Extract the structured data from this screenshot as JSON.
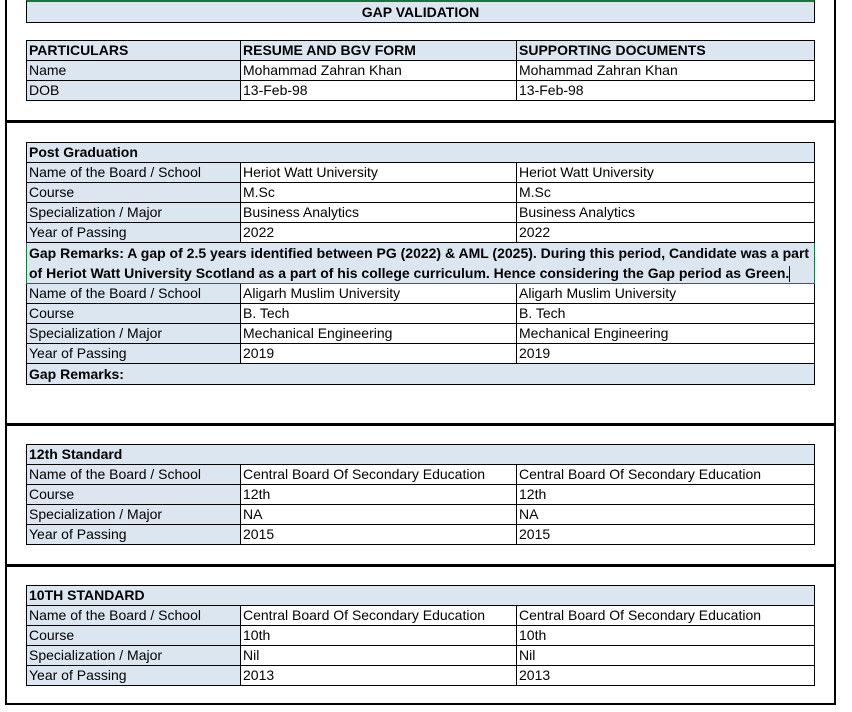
{
  "title": "GAP VALIDATION",
  "personal": {
    "headers": [
      "PARTICULARS",
      "RESUME AND BGV FORM",
      "SUPPORTING DOCUMENTS"
    ],
    "rows": [
      [
        "Name",
        "Mohammad Zahran Khan",
        "Mohammad Zahran Khan"
      ],
      [
        "DOB",
        "13-Feb-98",
        "13-Feb-98"
      ]
    ]
  },
  "post_graduation": {
    "heading": "Post Graduation",
    "rows": [
      [
        "Name of the Board / School",
        "Heriot Watt University",
        "Heriot Watt University"
      ],
      [
        "Course",
        "M.Sc",
        "M.Sc"
      ],
      [
        "Specialization / Major",
        "Business Analytics",
        "Business Analytics"
      ],
      [
        "Year of Passing",
        "2022",
        "2022"
      ]
    ],
    "gap_remarks": "Gap Remarks: A gap of 2.5 years identified between PG (2022) & AML (2025). During this period, Candidate was a part of Heriot Watt University Scotland as a part of his college curriculum. Hence considering the Gap period as Green."
  },
  "graduation": {
    "rows": [
      [
        "Name of the Board / School",
        "Aligarh Muslim University",
        "Aligarh Muslim University"
      ],
      [
        "Course",
        "B. Tech",
        "B. Tech"
      ],
      [
        "Specialization / Major",
        "Mechanical Engineering",
        "Mechanical Engineering"
      ],
      [
        "Year of Passing",
        "2019",
        "2019"
      ]
    ],
    "gap_remarks": "Gap Remarks:"
  },
  "twelfth": {
    "heading": "12th Standard",
    "rows": [
      [
        "Name of the Board / School",
        "Central Board Of Secondary Education",
        "Central Board Of Secondary Education"
      ],
      [
        "Course",
        "12th",
        "12th"
      ],
      [
        "Specialization / Major",
        "NA",
        "NA"
      ],
      [
        "Year of Passing",
        "2015",
        "2015"
      ]
    ]
  },
  "tenth": {
    "heading": "10TH STANDARD",
    "rows": [
      [
        "Name of the Board / School",
        "Central Board Of Secondary Education",
        "Central Board Of Secondary Education"
      ],
      [
        "Course",
        "10th",
        "10th"
      ],
      [
        "Specialization / Major",
        "Nil",
        "Nil"
      ],
      [
        "Year of Passing",
        "2013",
        "2013"
      ]
    ]
  },
  "colors": {
    "header_fill": "#dce6f1",
    "selection_border": "#1e7145"
  }
}
